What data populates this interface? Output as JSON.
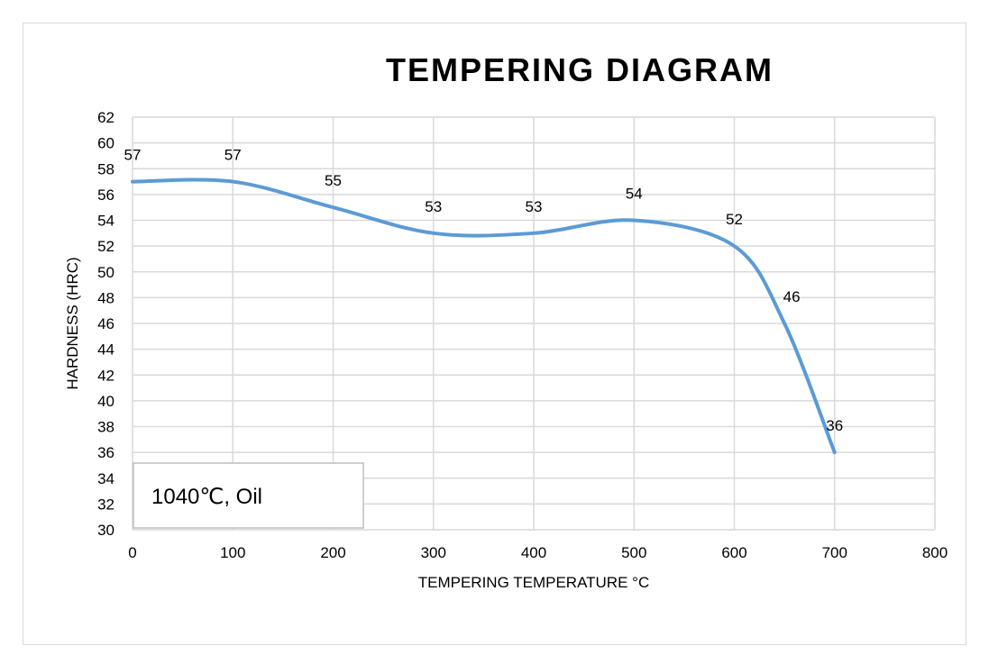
{
  "chart_data": {
    "type": "line",
    "title": "TEMPERING DIAGRAM",
    "xlabel": "TEMPERING TEMPERATURE °C",
    "ylabel": "HARDNESS (HRC)",
    "xlim": [
      0,
      800
    ],
    "ylim": [
      30,
      62
    ],
    "xticks": [
      0,
      100,
      200,
      300,
      400,
      500,
      600,
      700,
      800
    ],
    "yticks": [
      30,
      32,
      34,
      36,
      38,
      40,
      42,
      44,
      46,
      48,
      50,
      52,
      54,
      56,
      58,
      60,
      62
    ],
    "grid": true,
    "smooth": true,
    "series": [
      {
        "name": "1040℃, Oil",
        "color": "#5b9bd5",
        "x": [
          0,
          100,
          200,
          300,
          400,
          500,
          600,
          650,
          700
        ],
        "y": [
          57,
          57,
          55,
          53,
          53,
          54,
          52,
          46,
          36
        ]
      }
    ],
    "annotation": "1040℃, Oil"
  }
}
